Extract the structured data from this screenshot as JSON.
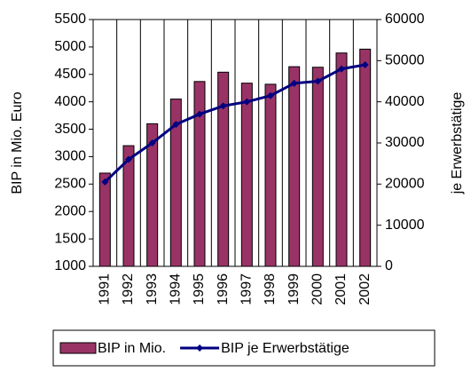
{
  "chart_data": {
    "type": "bar",
    "categories": [
      "1991",
      "1992",
      "1993",
      "1994",
      "1995",
      "1996",
      "1997",
      "1998",
      "1999",
      "2000",
      "2001",
      "2002"
    ],
    "series": [
      {
        "name": "BIP in Mio.",
        "type": "bar",
        "color": "#993366",
        "values": [
          2700,
          3200,
          3600,
          4050,
          4370,
          4540,
          4340,
          4320,
          4640,
          4630,
          4890,
          4960
        ]
      },
      {
        "name": "BIP je Erwerbstätige",
        "type": "line",
        "axis": "y2",
        "color": "#000080",
        "values": [
          20500,
          26000,
          30000,
          34500,
          37000,
          39000,
          40000,
          41500,
          44500,
          45000,
          48000,
          49000
        ]
      }
    ],
    "ylabel": "BIP in Mio. Euro",
    "y2label": "je Erwerbstätige",
    "ylim": [
      1000,
      5500
    ],
    "yticks": [
      1000,
      1500,
      2000,
      2500,
      3000,
      3500,
      4000,
      4500,
      5000,
      5500
    ],
    "y2lim": [
      0,
      60000
    ],
    "y2ticks": [
      0,
      10000,
      20000,
      30000,
      40000,
      50000,
      60000
    ],
    "x_grid": true,
    "legend": "bottom"
  }
}
